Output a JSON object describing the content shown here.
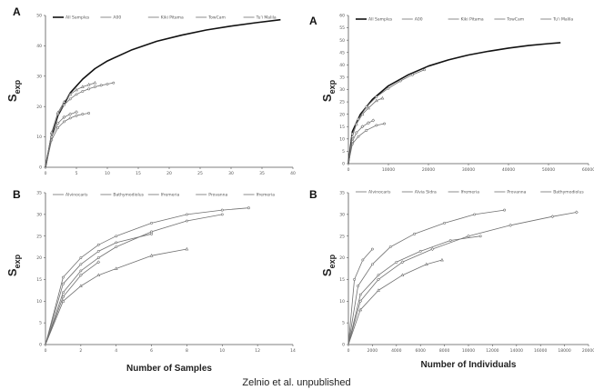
{
  "caption": "Zelnio et al. unpublished",
  "colors": {
    "curve": "#707070",
    "curve_bold": "#111111",
    "axis": "#555555"
  },
  "chart_data": [
    {
      "panel": "A",
      "type": "line",
      "xlabel": "",
      "ylabel": "S",
      "ylabel_sub": "exp",
      "xlim": [
        0,
        40
      ],
      "ylim": [
        0,
        50
      ],
      "xticks": [
        "0",
        "5",
        "10",
        "15",
        "20",
        "25",
        "30",
        "35",
        "40"
      ],
      "yticks": [
        "0",
        "10",
        "20",
        "30",
        "40",
        "50"
      ],
      "series": [
        {
          "name": "All Samples",
          "bold": true,
          "x": [
            0,
            1,
            2,
            4,
            6,
            8,
            10,
            14,
            18,
            22,
            26,
            30,
            34,
            38
          ],
          "y": [
            0,
            10.5,
            17,
            24.5,
            29,
            32.5,
            35,
            38.7,
            41.5,
            43.5,
            45.2,
            46.5,
            47.6,
            48.6
          ]
        },
        {
          "name": "A00",
          "x": [
            0,
            1,
            2,
            3,
            4,
            5,
            6,
            7,
            8,
            9,
            10,
            11
          ],
          "y": [
            0,
            11,
            17.5,
            20.5,
            22.5,
            24,
            25,
            25.8,
            26.5,
            27,
            27.4,
            27.8
          ]
        },
        {
          "name": "Kiki Pitama",
          "x": [
            0,
            1,
            2,
            3,
            4,
            5,
            6,
            7
          ],
          "y": [
            0,
            9,
            13,
            15,
            16.2,
            17,
            17.5,
            17.8
          ]
        },
        {
          "name": "TowCam",
          "x": [
            0,
            1,
            2,
            3,
            4,
            5
          ],
          "y": [
            0,
            10,
            14.5,
            16.5,
            17.5,
            18.2
          ]
        },
        {
          "name": "Tu'i Malila",
          "x": [
            0,
            1,
            2,
            3,
            4,
            5,
            6,
            7,
            8
          ],
          "y": [
            0,
            11.5,
            18,
            21.5,
            24,
            25.5,
            26.5,
            27.2,
            27.8
          ]
        }
      ]
    },
    {
      "panel": "A",
      "type": "line",
      "xlabel": "",
      "ylabel": "S",
      "ylabel_sub": "exp",
      "xlim": [
        0,
        60000
      ],
      "ylim": [
        0,
        60
      ],
      "xticks": [
        "0",
        "10000",
        "20000",
        "30000",
        "40000",
        "50000",
        "60000"
      ],
      "yticks": [
        "0",
        "5",
        "10",
        "15",
        "20",
        "25",
        "30",
        "35",
        "40",
        "45",
        "50",
        "55",
        "60"
      ],
      "series": [
        {
          "name": "All Samples",
          "bold": true,
          "x": [
            0,
            1000,
            3000,
            6000,
            10000,
            15000,
            20000,
            25000,
            30000,
            35000,
            40000,
            45000,
            50000,
            53000
          ],
          "y": [
            0,
            13,
            20,
            26,
            31.5,
            36,
            39.5,
            42,
            44,
            45.5,
            46.8,
            47.8,
            48.6,
            49
          ]
        },
        {
          "name": "A00",
          "x": [
            0,
            1000,
            2500,
            4500,
            7000,
            10000,
            13000,
            16000,
            19000
          ],
          "y": [
            0,
            12,
            18,
            23,
            27,
            30.5,
            33.5,
            36,
            38
          ]
        },
        {
          "name": "Kiki Pitama",
          "x": [
            0,
            1000,
            2500,
            4500,
            7000,
            9000
          ],
          "y": [
            0,
            8,
            11,
            13.5,
            15.5,
            16.2
          ]
        },
        {
          "name": "TowCam",
          "x": [
            0,
            1000,
            2000,
            3500,
            5000,
            6200
          ],
          "y": [
            0,
            9,
            12.5,
            15,
            16.5,
            17.5
          ]
        },
        {
          "name": "Tu'i Malila",
          "x": [
            0,
            1000,
            2000,
            3500,
            5000,
            7000,
            8500
          ],
          "y": [
            0,
            11,
            16,
            20,
            22.5,
            25.5,
            26.5
          ]
        }
      ]
    },
    {
      "panel": "B",
      "type": "line",
      "xlabel": "Number of Samples",
      "ylabel": "S",
      "ylabel_sub": "exp",
      "xlim": [
        0,
        14
      ],
      "ylim": [
        0,
        35
      ],
      "xticks": [
        "0",
        "2",
        "4",
        "6",
        "8",
        "10",
        "12",
        "14"
      ],
      "yticks": [
        "0",
        "5",
        "10",
        "15",
        "20",
        "25",
        "30",
        "35"
      ],
      "series": [
        {
          "name": "Alvinocaris",
          "x": [
            0,
            1,
            2,
            3,
            4,
            6,
            8,
            10,
            11.5
          ],
          "y": [
            0,
            15.5,
            20,
            23,
            25,
            28,
            30,
            31,
            31.5
          ]
        },
        {
          "name": "Bathymodiolus",
          "x": [
            0,
            1,
            2,
            3,
            4,
            6
          ],
          "y": [
            0,
            14,
            18.5,
            21.5,
            23.5,
            25.5
          ]
        },
        {
          "name": "Ifremeria",
          "x": [
            0,
            1,
            2,
            3,
            4,
            6,
            8,
            10
          ],
          "y": [
            0,
            12,
            17,
            20,
            22.5,
            26,
            28.5,
            30
          ]
        },
        {
          "name": "Provanna",
          "x": [
            0,
            1,
            2,
            3
          ],
          "y": [
            0,
            11,
            16,
            19
          ]
        },
        {
          "name": "Ifremeria",
          "x": [
            0,
            1,
            2,
            3,
            4,
            6,
            8
          ],
          "y": [
            0,
            10,
            13.5,
            16,
            17.5,
            20.5,
            22
          ]
        }
      ]
    },
    {
      "panel": "B",
      "type": "line",
      "xlabel": "Number of Individuals",
      "ylabel": "S",
      "ylabel_sub": "exp",
      "xlim": [
        0,
        20000
      ],
      "ylim": [
        0,
        35
      ],
      "xticks": [
        "0",
        "2000",
        "4000",
        "6000",
        "8000",
        "10000",
        "12000",
        "14000",
        "16000",
        "18000",
        "20000"
      ],
      "yticks": [
        "0",
        "5",
        "10",
        "15",
        "20",
        "25",
        "30",
        "35"
      ],
      "series": [
        {
          "name": "Alvinocaris",
          "x": [
            0,
            500,
            1200,
            2000
          ],
          "y": [
            0,
            15,
            19.5,
            22
          ]
        },
        {
          "name": "Alvia Sidra",
          "x": [
            0,
            800,
            2000,
            3500,
            5500,
            8000,
            10500,
            13000
          ],
          "y": [
            0,
            13.5,
            18.5,
            22.5,
            25.5,
            28,
            30,
            31
          ]
        },
        {
          "name": "Ifremeria",
          "x": [
            0,
            1000,
            2500,
            4000,
            6000,
            8500,
            11000
          ],
          "y": [
            0,
            11.5,
            16,
            19,
            21.5,
            24,
            25
          ]
        },
        {
          "name": "Provanna",
          "x": [
            0,
            1000,
            2500,
            4500,
            7000,
            10000,
            13500,
            17000,
            19000
          ],
          "y": [
            0,
            10,
            15,
            19,
            22,
            25,
            27.5,
            29.5,
            30.5
          ]
        },
        {
          "name": "Bathymodiolus",
          "x": [
            0,
            1000,
            2500,
            4500,
            6500,
            7800
          ],
          "y": [
            0,
            8,
            12.5,
            16,
            18.5,
            19.5
          ]
        }
      ]
    }
  ]
}
